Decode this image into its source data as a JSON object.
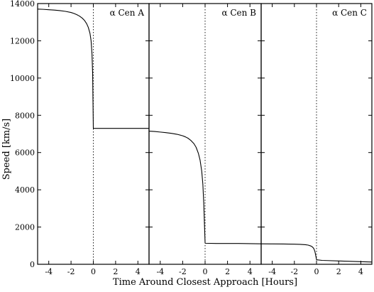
{
  "chart_data": {
    "type": "line",
    "xlabel": "Time Around Closest Approach [Hours]",
    "ylabel": "Speed [km/s]",
    "xlim": [
      -5,
      5
    ],
    "ylim": [
      0,
      14000
    ],
    "x_ticks": [
      -4,
      -2,
      0,
      2,
      4
    ],
    "y_ticks": [
      0,
      2000,
      4000,
      6000,
      8000,
      10000,
      12000,
      14000
    ],
    "grid": false,
    "shared_y_axis": true,
    "vertical_reference_line": {
      "x": 0,
      "style": "dotted"
    },
    "panels": [
      {
        "title": "α Cen A",
        "series": [
          {
            "x": [
              -5,
              -4.5,
              -4,
              -3.5,
              -3,
              -2.5,
              -2,
              -1.75,
              -1.5,
              -1.25,
              -1,
              -0.8,
              -0.6,
              -0.45,
              -0.3,
              -0.2,
              -0.12,
              -0.06,
              0,
              0.01,
              1,
              2,
              3,
              4,
              5
            ],
            "y": [
              13700,
              13690,
              13670,
              13650,
              13620,
              13580,
              13520,
              13470,
              13410,
              13330,
              13220,
              13100,
              12920,
              12720,
              12400,
              12000,
              11300,
              10200,
              7300,
              7300,
              7300,
              7300,
              7300,
              7300,
              7300
            ]
          }
        ]
      },
      {
        "title": "α Cen B",
        "series": [
          {
            "x": [
              -5,
              -4.5,
              -4,
              -3.5,
              -3,
              -2.5,
              -2,
              -1.75,
              -1.5,
              -1.25,
              -1,
              -0.8,
              -0.6,
              -0.45,
              -0.3,
              -0.2,
              -0.12,
              -0.06,
              0,
              0.01,
              1,
              2,
              3,
              4,
              5
            ],
            "y": [
              7150,
              7130,
              7100,
              7070,
              7030,
              6980,
              6900,
              6840,
              6760,
              6640,
              6480,
              6280,
              5960,
              5600,
              5000,
              4300,
              3300,
              2200,
              1150,
              1130,
              1120,
              1120,
              1120,
              1110,
              1100
            ]
          }
        ]
      },
      {
        "title": "α Cen C",
        "series": [
          {
            "x": [
              -5,
              -4,
              -3,
              -2,
              -1.5,
              -1,
              -0.75,
              -0.5,
              -0.35,
              -0.25,
              -0.15,
              -0.08,
              0,
              0.05,
              0.5,
              1,
              2,
              3,
              4,
              5
            ],
            "y": [
              1100,
              1095,
              1090,
              1080,
              1070,
              1050,
              1030,
              980,
              920,
              850,
              700,
              500,
              250,
              240,
              210,
              200,
              180,
              160,
              140,
              120
            ]
          }
        ]
      }
    ]
  }
}
